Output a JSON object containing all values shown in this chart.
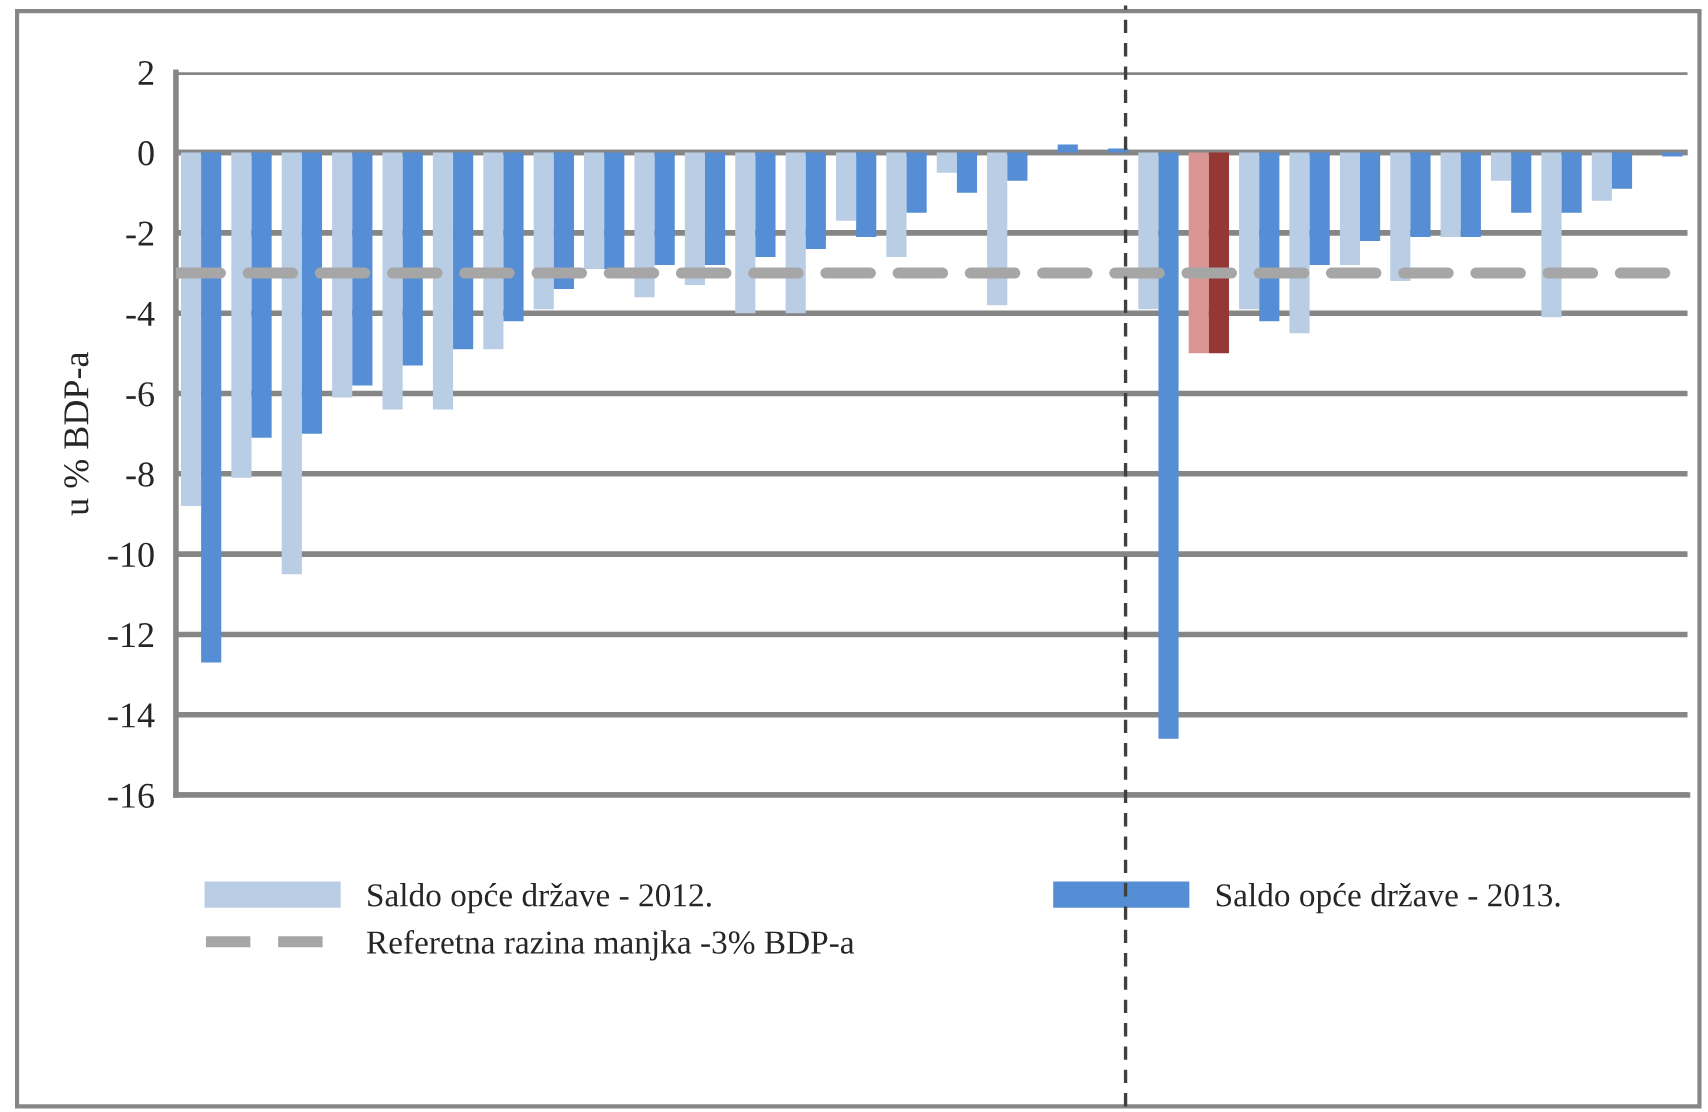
{
  "chart_data": {
    "type": "bar",
    "ylabel": "u % BDP-a",
    "categories": [
      null,
      null,
      null,
      null,
      null,
      null,
      null,
      null,
      null,
      null,
      null,
      null,
      null,
      null,
      null,
      null,
      null,
      null,
      null,
      null,
      null,
      null,
      null,
      null,
      null,
      null,
      null,
      null,
      null,
      null
    ],
    "series": [
      {
        "name": "Saldo opće države - 2012.",
        "color": "#b9cde5",
        "colors": [
          "#b9cde5",
          "#b9cde5",
          "#b9cde5",
          "#b9cde5",
          "#b9cde5",
          "#b9cde5",
          "#b9cde5",
          "#b9cde5",
          "#b9cde5",
          "#b9cde5",
          "#b9cde5",
          "#b9cde5",
          "#b9cde5",
          "#b9cde5",
          "#b9cde5",
          "#b9cde5",
          "#b9cde5",
          "#b9cde5",
          "#b9cde5",
          "#b9cde5",
          "#d99694",
          "#b9cde5",
          "#b9cde5",
          "#b9cde5",
          "#b9cde5",
          "#b9cde5",
          "#b9cde5",
          "#b9cde5",
          "#b9cde5",
          "#b9cde5"
        ],
        "values": [
          -8.8,
          -8.1,
          -10.5,
          -6.1,
          -6.4,
          -6.4,
          -4.9,
          -3.9,
          -2.9,
          -3.6,
          -3.3,
          -4.0,
          -4.0,
          -1.7,
          -2.6,
          -0.5,
          -3.8,
          0,
          0,
          -3.9,
          -5.0,
          -3.9,
          -4.5,
          -2.8,
          -3.2,
          -2.1,
          -0.7,
          -4.1,
          -1.2,
          0
        ]
      },
      {
        "name": "Saldo opće države - 2013.",
        "color": "#558ed5",
        "colors": [
          "#558ed5",
          "#558ed5",
          "#558ed5",
          "#558ed5",
          "#558ed5",
          "#558ed5",
          "#558ed5",
          "#558ed5",
          "#558ed5",
          "#558ed5",
          "#558ed5",
          "#558ed5",
          "#558ed5",
          "#558ed5",
          "#558ed5",
          "#558ed5",
          "#558ed5",
          "#558ed5",
          "#558ed5",
          "#558ed5",
          "#953735",
          "#558ed5",
          "#558ed5",
          "#558ed5",
          "#558ed5",
          "#558ed5",
          "#558ed5",
          "#558ed5",
          "#558ed5",
          "#558ed5"
        ],
        "values": [
          -12.7,
          -7.1,
          -7.0,
          -5.8,
          -5.3,
          -4.9,
          -4.2,
          -3.4,
          -2.9,
          -2.8,
          -2.8,
          -2.6,
          -2.4,
          -2.1,
          -1.5,
          -1.0,
          -0.7,
          0.2,
          0.1,
          -14.6,
          -5.0,
          -4.2,
          -2.8,
          -2.2,
          -2.1,
          -2.1,
          -1.5,
          -1.5,
          -0.9,
          -0.1
        ]
      }
    ],
    "ylim": [
      -16,
      2
    ],
    "yticks": [
      -16,
      -14,
      -12,
      -10,
      -8,
      -6,
      -4,
      -2,
      0,
      2
    ],
    "grid": "y",
    "legend": "bottom",
    "ref_lines": [
      {
        "axis": "y",
        "value": -3,
        "label": "Referetna razina manjka -3% BDP-a",
        "color": "#a6a6a6",
        "line_style": "dashed"
      }
    ]
  }
}
